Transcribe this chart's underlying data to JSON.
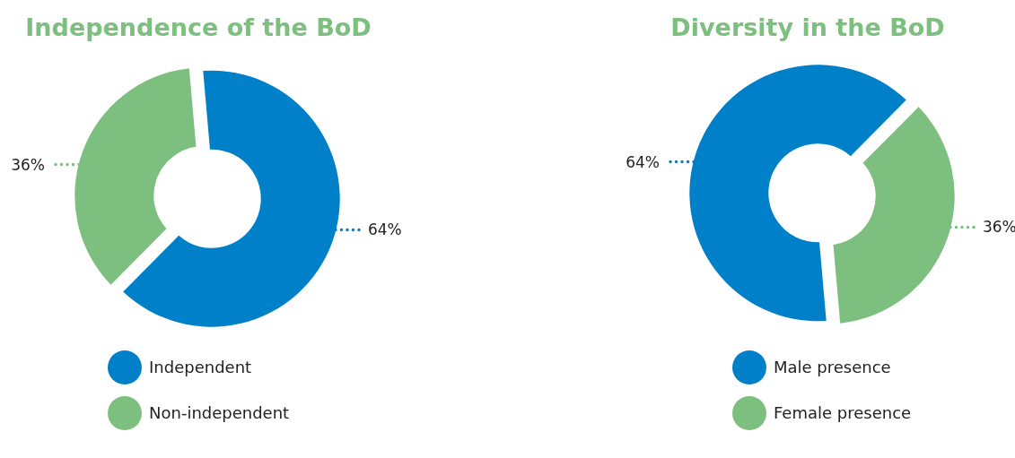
{
  "chart_data": [
    {
      "type": "donut",
      "title": "Independence of the BoD",
      "categories": [
        "Independent",
        "Non-independent"
      ],
      "values": [
        64,
        36
      ],
      "colors": [
        "#0080c8",
        "#7dbf7f"
      ],
      "value_labels": [
        "64%",
        "36%"
      ],
      "legend": "bottom"
    },
    {
      "type": "donut",
      "title": "Diversity in the BoD",
      "categories": [
        "Male presence",
        "Female presence"
      ],
      "values": [
        64,
        36
      ],
      "colors": [
        "#0080c8",
        "#7dbf7f"
      ],
      "value_labels": [
        "64%",
        "36%"
      ],
      "legend": "bottom"
    }
  ]
}
